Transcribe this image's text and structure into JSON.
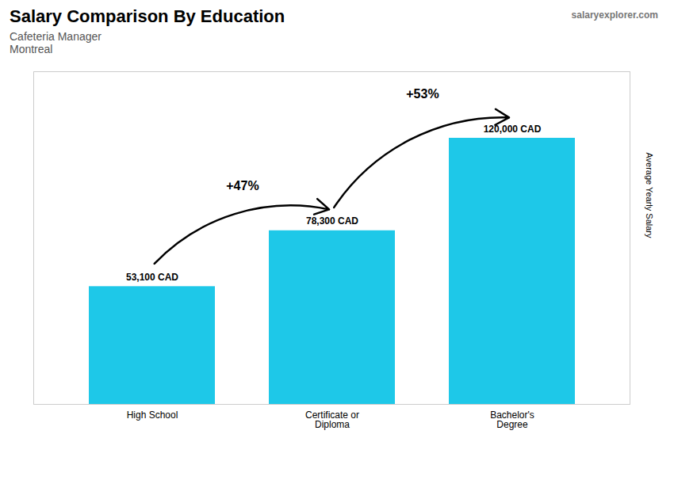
{
  "chart_data": {
    "type": "bar",
    "title": "Salary Comparison By Education",
    "subtitle": [
      "Cafeteria Manager",
      "Montreal"
    ],
    "caption": "salaryexplorer.com",
    "ylabel": "Average Yearly Salary",
    "categories": [
      "High School",
      "Certificate or\nDiploma",
      "Bachelor's\nDegree"
    ],
    "values": [
      53100,
      78300,
      120000
    ],
    "value_labels": [
      "53,100 CAD",
      "78,300 CAD",
      "120,000 CAD"
    ],
    "data_labels": true,
    "color": "#1EC8E8",
    "ylim": [
      0,
      150000
    ],
    "tick_labels": "x",
    "grid": false,
    "annotations": [
      {
        "text": "+47%",
        "from": "High School",
        "to": "Certificate or\nDiploma"
      },
      {
        "text": "+53%",
        "from": "Certificate or\nDiploma",
        "to": "Bachelor's\nDegree"
      }
    ]
  }
}
